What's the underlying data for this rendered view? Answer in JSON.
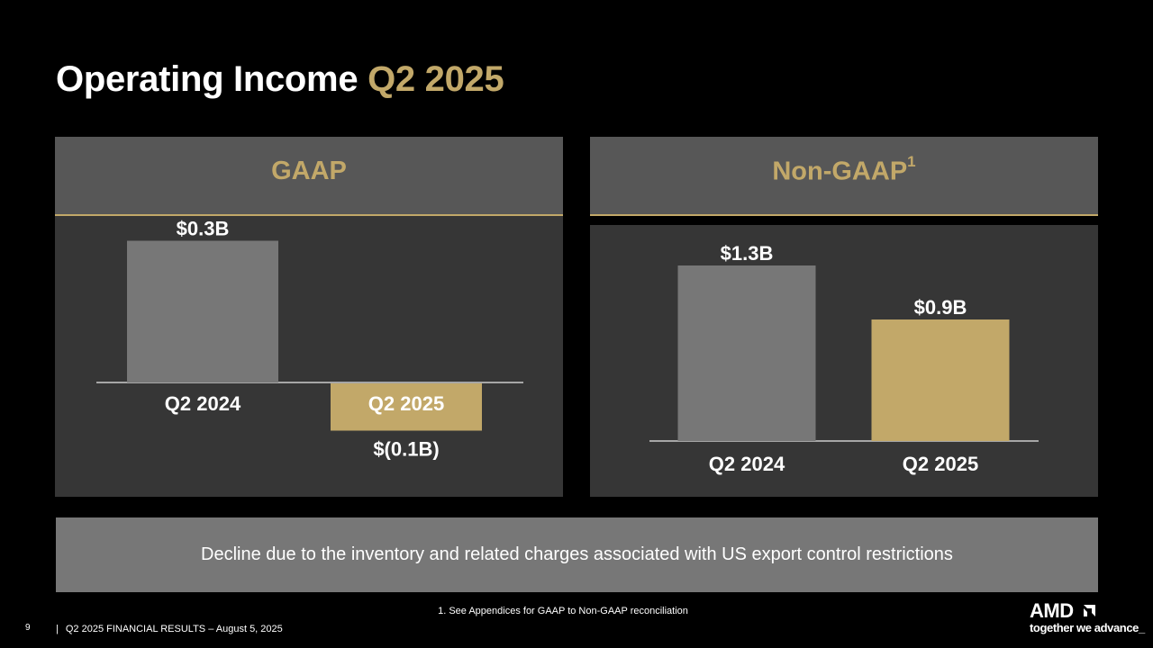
{
  "title": {
    "main": "Operating Income",
    "accent": "Q2 2025"
  },
  "panels": {
    "gaap": {
      "label": "GAAP",
      "superscript": ""
    },
    "non_gaap": {
      "label": "Non-GAAP",
      "superscript": "1"
    }
  },
  "chart_data": [
    {
      "type": "bar",
      "title": "GAAP",
      "categories": [
        "Q2 2024",
        "Q2 2025"
      ],
      "values": [
        0.3,
        -0.1
      ],
      "value_labels": [
        "$0.3B",
        "$(0.1B)"
      ],
      "unit": "$B",
      "colors": [
        "#777777",
        "#c2a869"
      ]
    },
    {
      "type": "bar",
      "title": "Non-GAAP",
      "categories": [
        "Q2 2024",
        "Q2 2025"
      ],
      "values": [
        1.3,
        0.9
      ],
      "value_labels": [
        "$1.3B",
        "$0.9B"
      ],
      "unit": "$B",
      "colors": [
        "#777777",
        "#c2a869"
      ]
    }
  ],
  "note": "Decline due to the inventory and related charges associated with US export control restrictions",
  "footnote": "1. See Appendices for GAAP to Non-GAAP reconciliation",
  "footer": {
    "page_number": "9",
    "separator": "|",
    "text": "Q2 2025 FINANCIAL RESULTS – August 5, 2025"
  },
  "logo": {
    "wordmark": "AMD",
    "tagline": "together we advance_"
  },
  "colors": {
    "background": "#000000",
    "accent": "#c2a869",
    "panel_header": "#575757",
    "panel_body": "#363636",
    "bar_prior": "#777777",
    "note_box": "#777777"
  }
}
